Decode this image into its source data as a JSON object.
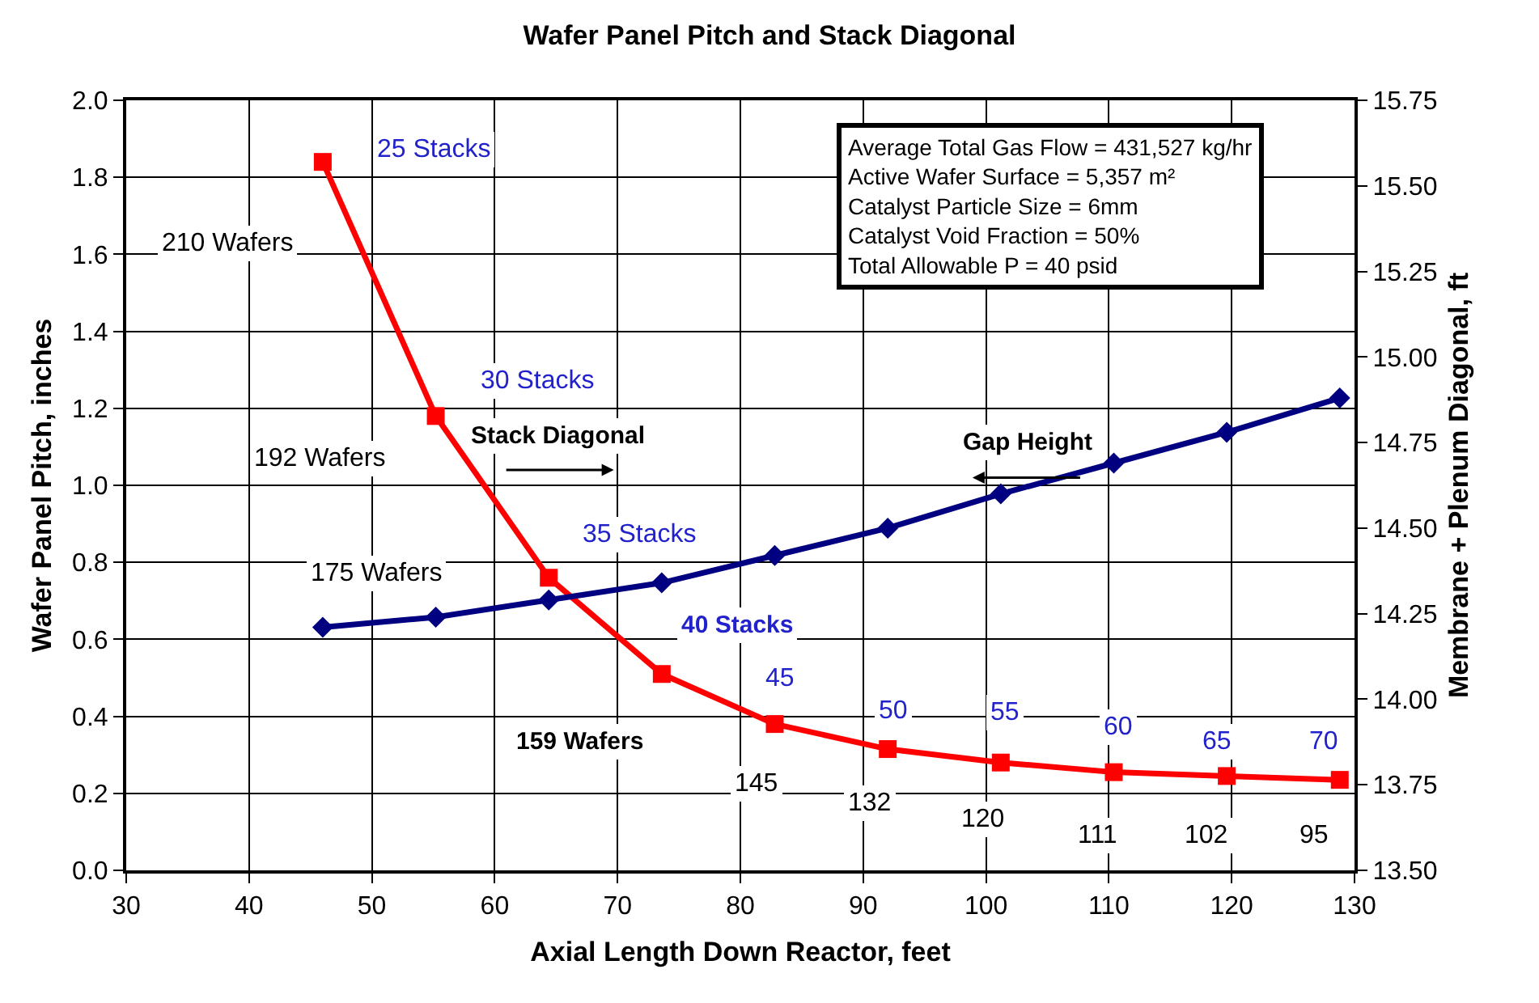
{
  "chart_data": {
    "type": "line",
    "title": "Wafer Panel Pitch and Stack Diagonal",
    "xlabel": "Axial Length Down Reactor, feet",
    "ylabel": "Wafer Panel Pitch, inches",
    "y2label": "Membrane + Plenum Diagonal, ft",
    "x": [
      46,
      55.2,
      64.4,
      73.6,
      82.8,
      92,
      101.2,
      110.4,
      119.6,
      128.8
    ],
    "series": [
      {
        "color": "#ff0000",
        "marker": "square",
        "values": [
          1.84,
          1.18,
          0.76,
          0.51,
          0.38,
          0.315,
          0.28,
          0.255,
          0.245,
          0.235
        ]
      },
      {
        "color": "#000080",
        "marker": "diamond",
        "axis": "y2",
        "values": [
          14.21,
          14.24,
          14.29,
          14.34,
          14.42,
          14.5,
          14.6,
          14.69,
          14.78,
          14.88
        ]
      }
    ],
    "xlim": [
      30,
      130
    ],
    "xticks": [
      30,
      40,
      50,
      60,
      70,
      80,
      90,
      100,
      110,
      120,
      130
    ],
    "ylim": [
      0,
      2
    ],
    "yticks": [
      {
        "value": 0,
        "label": "0.0"
      },
      0.2,
      0.4,
      0.6,
      0.8,
      {
        "value": 1,
        "label": "1.0"
      },
      1.2,
      1.4,
      1.6,
      1.8,
      {
        "value": 2,
        "label": "2.0"
      }
    ],
    "y2lim": [
      13.5,
      15.75
    ],
    "y2ticks": [
      {
        "value": 13.5,
        "label": "13.50"
      },
      13.75,
      {
        "value": 14,
        "label": "14.00"
      },
      14.25,
      {
        "value": 14.5,
        "label": "14.50"
      },
      14.75,
      {
        "value": 15,
        "label": "15.00"
      },
      15.25,
      {
        "value": 15.5,
        "label": "15.50"
      },
      15.75
    ],
    "grid": true,
    "line_style": "solid",
    "annotations": [
      "25 Stacks",
      "210 Wafers",
      "30 Stacks",
      "Stack Diagonal",
      "192 Wafers",
      "35 Stacks",
      "Gap Height",
      "175 Wafers",
      "40 Stacks",
      "45",
      "50",
      "55",
      "60",
      "65",
      "70",
      "159 Wafers",
      "145",
      "132",
      "120",
      "111",
      "102",
      "95",
      "Average Total Gas Flow = 431,527 kg/hr\nActive Wafer Surface = 5,357 m²\nCatalyst Particle Size = 6mm\nCatalyst Void Fraction = 50%\nTotal Allowable P = 40 psid"
    ]
  }
}
